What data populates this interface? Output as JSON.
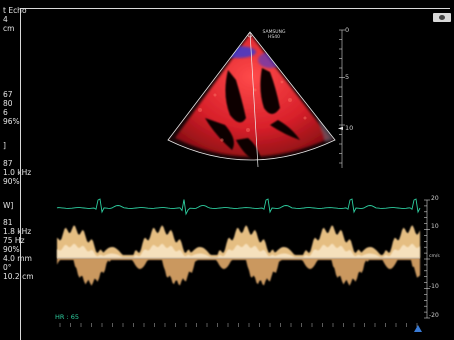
{
  "top_params": {
    "mode": "t Echo",
    "depth_value": "4",
    "depth_unit": "cm"
  },
  "bmode_params": [
    "67",
    "80",
    "6",
    "96%"
  ],
  "color_params": [
    "87",
    "1.0 kHz",
    "90%"
  ],
  "pw_params": [
    "81",
    "1.8 kHz",
    "75 Hz",
    "90%",
    "4.0 mm",
    "0°",
    "10.2 cm"
  ],
  "pw_marker": "W]",
  "color_marker": "]",
  "brand": {
    "line1": "SAMSUNG",
    "line2": "HS40"
  },
  "depth_scale": {
    "ticks": [
      "0",
      "5",
      "10"
    ],
    "focus_marker": "◄"
  },
  "velocity_scale": {
    "ticks": [
      "20",
      "10",
      "cm/s",
      "-10",
      "-20"
    ]
  },
  "heart_rate": "HR : 65",
  "colors": {
    "color_flow_red": "#d8202a",
    "color_flow_blue": "#3a3ad0",
    "ecg": "#2ecfa0",
    "doppler": "#f2c98a",
    "marker": "#3a7bd5"
  },
  "icons": {
    "camera": "camera-icon",
    "baseline_marker": "triangle-marker-icon"
  }
}
